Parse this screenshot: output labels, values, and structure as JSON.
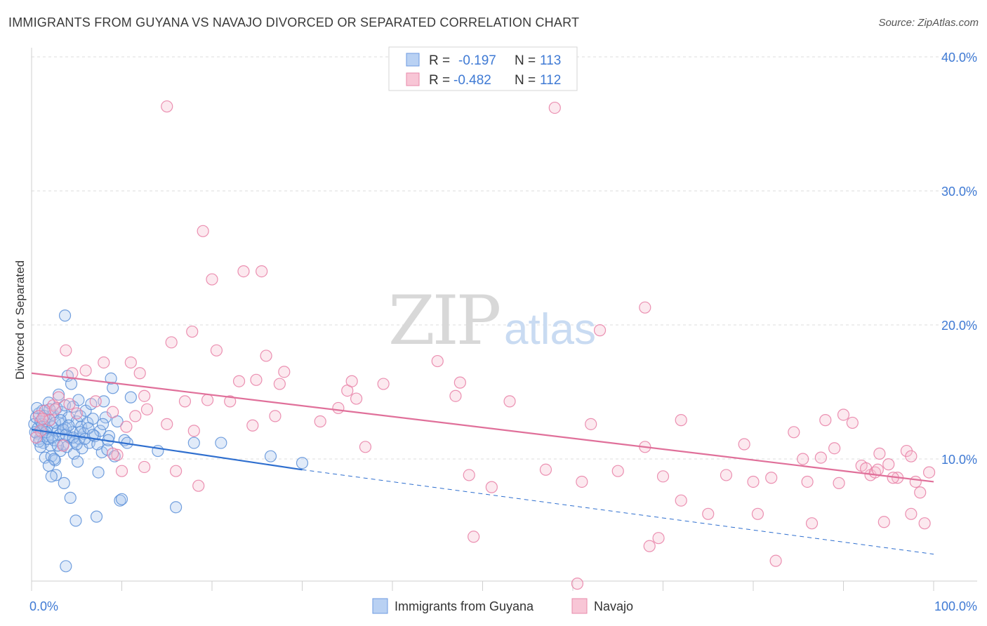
{
  "title": "IMMIGRANTS FROM GUYANA VS NAVAJO DIVORCED OR SEPARATED CORRELATION CHART",
  "source": "Source: ZipAtlas.com",
  "watermark": {
    "part1": "ZIP",
    "part2": "atlas"
  },
  "colors": {
    "blue": "#5b8fd8",
    "blue_fill": "#aac6ee",
    "blue_line": "#2f6fcf",
    "pink": "#e87ea4",
    "pink_fill": "#f5bfd1",
    "pink_line": "#e0709a",
    "axis_text": "#3f7ad4",
    "grid": "#dcdcdc"
  },
  "legend": {
    "rows": [
      {
        "r_label": "R =",
        "r_value": "-0.197",
        "n_label": "N =",
        "n_value": "113"
      },
      {
        "r_label": "R =",
        "r_value": "-0.482",
        "n_label": "N =",
        "n_value": "112"
      }
    ]
  },
  "chart_data": {
    "type": "scatter",
    "title": "IMMIGRANTS FROM GUYANA VS NAVAJO DIVORCED OR SEPARATED CORRELATION CHART",
    "xlabel": "",
    "ylabel": "Divorced or Separated",
    "xlim": [
      0,
      100
    ],
    "ylim": [
      0,
      42
    ],
    "x_tick_labels": [
      "0.0%",
      "100.0%"
    ],
    "y_ticks": [
      10,
      20,
      30,
      40
    ],
    "y_tick_labels": [
      "10.0%",
      "20.0%",
      "30.0%",
      "40.0%"
    ],
    "grid": true,
    "legend_position": "top-center",
    "series": [
      {
        "name": "Immigrants from Guyana",
        "color": "#5b8fd8",
        "trend": {
          "x0": 0,
          "y0": 12.2,
          "x1": 30,
          "y1": 9.2,
          "dash_to_x": 100,
          "dash_to_y": 2.9
        },
        "points": [
          [
            0.3,
            12.6
          ],
          [
            0.5,
            13.1
          ],
          [
            0.6,
            11.9
          ],
          [
            0.7,
            12.3
          ],
          [
            0.8,
            13.4
          ],
          [
            0.9,
            11.5
          ],
          [
            1.0,
            12.8
          ],
          [
            1.1,
            12.0
          ],
          [
            1.2,
            13.6
          ],
          [
            1.3,
            11.2
          ],
          [
            1.4,
            12.5
          ],
          [
            1.5,
            10.1
          ],
          [
            1.6,
            13.0
          ],
          [
            1.7,
            12.2
          ],
          [
            1.8,
            11.7
          ],
          [
            1.9,
            14.2
          ],
          [
            2.0,
            12.9
          ],
          [
            2.1,
            11.0
          ],
          [
            2.2,
            10.2
          ],
          [
            2.3,
            12.4
          ],
          [
            2.4,
            13.3
          ],
          [
            2.5,
            11.4
          ],
          [
            2.6,
            9.9
          ],
          [
            2.7,
            8.8
          ],
          [
            2.8,
            13.8
          ],
          [
            2.9,
            12.1
          ],
          [
            3.0,
            14.8
          ],
          [
            3.1,
            11.8
          ],
          [
            3.2,
            10.6
          ],
          [
            3.3,
            13.5
          ],
          [
            3.4,
            12.6
          ],
          [
            3.5,
            11.1
          ],
          [
            3.6,
            8.2
          ],
          [
            3.7,
            14.0
          ],
          [
            3.8,
            12.3
          ],
          [
            3.9,
            10.9
          ],
          [
            4.0,
            16.2
          ],
          [
            4.1,
            13.1
          ],
          [
            4.2,
            11.6
          ],
          [
            4.3,
            7.1
          ],
          [
            4.4,
            15.6
          ],
          [
            4.5,
            12.0
          ],
          [
            4.6,
            13.9
          ],
          [
            4.7,
            10.4
          ],
          [
            4.8,
            11.3
          ],
          [
            4.9,
            5.4
          ],
          [
            5.0,
            12.8
          ],
          [
            5.1,
            9.8
          ],
          [
            5.2,
            14.4
          ],
          [
            5.3,
            11.5
          ],
          [
            5.4,
            13.2
          ],
          [
            5.5,
            12.4
          ],
          [
            5.6,
            10.8
          ],
          [
            5.8,
            11.9
          ],
          [
            6.0,
            13.6
          ],
          [
            6.2,
            12.7
          ],
          [
            6.4,
            11.2
          ],
          [
            6.6,
            14.1
          ],
          [
            6.8,
            13.0
          ],
          [
            7.0,
            11.7
          ],
          [
            7.2,
            5.7
          ],
          [
            7.4,
            9.0
          ],
          [
            7.6,
            12.1
          ],
          [
            7.8,
            10.5
          ],
          [
            8.0,
            14.3
          ],
          [
            8.2,
            13.1
          ],
          [
            8.4,
            10.7
          ],
          [
            8.6,
            11.7
          ],
          [
            8.8,
            16.0
          ],
          [
            9.0,
            15.3
          ],
          [
            9.2,
            10.2
          ],
          [
            9.5,
            12.8
          ],
          [
            9.8,
            6.9
          ],
          [
            10.0,
            7.0
          ],
          [
            10.3,
            11.4
          ],
          [
            10.6,
            11.2
          ],
          [
            11.0,
            14.6
          ],
          [
            14.0,
            10.6
          ],
          [
            16.0,
            6.4
          ],
          [
            18.0,
            11.2
          ],
          [
            21.0,
            11.2
          ],
          [
            26.5,
            10.2
          ],
          [
            30.0,
            9.7
          ],
          [
            3.7,
            20.7
          ],
          [
            3.8,
            2.0
          ],
          [
            2.5,
            10.0
          ],
          [
            1.9,
            9.5
          ],
          [
            2.2,
            8.7
          ],
          [
            0.4,
            12.0
          ],
          [
            0.6,
            13.8
          ],
          [
            0.8,
            11.3
          ],
          [
            1.0,
            10.9
          ],
          [
            1.2,
            12.6
          ],
          [
            1.4,
            13.2
          ],
          [
            1.6,
            12.0
          ],
          [
            1.8,
            11.5
          ],
          [
            2.0,
            13.7
          ],
          [
            2.3,
            11.6
          ],
          [
            2.6,
            12.7
          ],
          [
            2.9,
            11.0
          ],
          [
            3.2,
            12.9
          ],
          [
            3.5,
            12.2
          ],
          [
            3.8,
            11.8
          ],
          [
            4.1,
            12.5
          ],
          [
            4.6,
            11.6
          ],
          [
            5.0,
            11.1
          ],
          [
            5.4,
            12.0
          ],
          [
            5.9,
            11.5
          ],
          [
            6.3,
            12.3
          ],
          [
            6.8,
            11.8
          ],
          [
            7.3,
            11.1
          ],
          [
            7.9,
            12.6
          ],
          [
            8.5,
            11.4
          ]
        ]
      },
      {
        "name": "Navajo",
        "color": "#e87ea4",
        "trend": {
          "x0": 0,
          "y0": 16.4,
          "x1": 100,
          "y1": 8.3
        },
        "points": [
          [
            15.0,
            36.3
          ],
          [
            58.0,
            36.2
          ],
          [
            19.0,
            27.0
          ],
          [
            20.0,
            23.4
          ],
          [
            23.5,
            24.0
          ],
          [
            25.5,
            24.0
          ],
          [
            68.0,
            21.3
          ],
          [
            17.8,
            19.5
          ],
          [
            63.0,
            19.6
          ],
          [
            3.8,
            18.1
          ],
          [
            15.5,
            18.7
          ],
          [
            20.5,
            18.1
          ],
          [
            26.0,
            17.7
          ],
          [
            4.5,
            16.4
          ],
          [
            11.0,
            17.2
          ],
          [
            8.0,
            17.2
          ],
          [
            6.0,
            16.6
          ],
          [
            12.0,
            16.4
          ],
          [
            23.0,
            15.8
          ],
          [
            24.9,
            15.9
          ],
          [
            27.5,
            15.6
          ],
          [
            28.0,
            16.5
          ],
          [
            35.0,
            15.1
          ],
          [
            35.5,
            15.8
          ],
          [
            39.0,
            15.6
          ],
          [
            45.0,
            17.3
          ],
          [
            47.0,
            14.7
          ],
          [
            47.5,
            15.7
          ],
          [
            2.4,
            14.0
          ],
          [
            4.2,
            14.1
          ],
          [
            7.1,
            14.3
          ],
          [
            12.5,
            14.7
          ],
          [
            12.8,
            13.7
          ],
          [
            17.0,
            14.3
          ],
          [
            19.5,
            14.4
          ],
          [
            22.0,
            14.3
          ],
          [
            32.0,
            12.8
          ],
          [
            34.0,
            13.8
          ],
          [
            36.0,
            14.5
          ],
          [
            53.0,
            14.3
          ],
          [
            5.0,
            13.4
          ],
          [
            9.0,
            13.5
          ],
          [
            10.5,
            12.4
          ],
          [
            11.5,
            13.2
          ],
          [
            15.0,
            12.6
          ],
          [
            18.0,
            12.1
          ],
          [
            24.5,
            12.5
          ],
          [
            27.0,
            13.2
          ],
          [
            62.0,
            12.6
          ],
          [
            68.0,
            10.9
          ],
          [
            72.0,
            12.9
          ],
          [
            79.0,
            11.1
          ],
          [
            84.5,
            12.0
          ],
          [
            85.5,
            10.0
          ],
          [
            88.0,
            12.9
          ],
          [
            89.0,
            10.8
          ],
          [
            90.0,
            13.3
          ],
          [
            91.0,
            12.7
          ],
          [
            92.0,
            9.5
          ],
          [
            93.0,
            8.8
          ],
          [
            94.0,
            10.4
          ],
          [
            95.0,
            9.6
          ],
          [
            96.0,
            8.6
          ],
          [
            97.0,
            10.6
          ],
          [
            97.5,
            10.2
          ],
          [
            98.5,
            7.5
          ],
          [
            99.5,
            9.0
          ],
          [
            92.5,
            9.3
          ],
          [
            93.5,
            9.0
          ],
          [
            87.5,
            10.1
          ],
          [
            86.0,
            8.3
          ],
          [
            82.0,
            8.6
          ],
          [
            80.0,
            8.3
          ],
          [
            77.0,
            8.8
          ],
          [
            70.0,
            8.7
          ],
          [
            65.0,
            9.1
          ],
          [
            61.0,
            8.3
          ],
          [
            57.0,
            9.2
          ],
          [
            51.0,
            7.9
          ],
          [
            48.5,
            8.8
          ],
          [
            37.0,
            10.9
          ],
          [
            9.5,
            10.3
          ],
          [
            12.5,
            9.4
          ],
          [
            16.0,
            9.1
          ],
          [
            18.5,
            8.0
          ],
          [
            9.0,
            10.4
          ],
          [
            10.0,
            9.1
          ],
          [
            3.5,
            11.0
          ],
          [
            1.0,
            12.1
          ],
          [
            1.5,
            13.6
          ],
          [
            2.0,
            12.9
          ],
          [
            2.6,
            13.7
          ],
          [
            3.0,
            14.6
          ],
          [
            0.8,
            13.2
          ],
          [
            0.5,
            11.6
          ],
          [
            1.2,
            13.0
          ],
          [
            72.0,
            6.9
          ],
          [
            75.0,
            5.9
          ],
          [
            80.5,
            5.9
          ],
          [
            86.5,
            5.2
          ],
          [
            94.5,
            5.3
          ],
          [
            97.5,
            5.9
          ],
          [
            99.0,
            5.2
          ],
          [
            69.5,
            4.1
          ],
          [
            68.5,
            3.5
          ],
          [
            49.0,
            4.2
          ],
          [
            82.5,
            2.4
          ],
          [
            60.5,
            0.7
          ],
          [
            93.8,
            9.2
          ],
          [
            95.5,
            8.6
          ],
          [
            98.0,
            8.3
          ],
          [
            89.5,
            8.2
          ]
        ]
      }
    ]
  },
  "bottom_legend": [
    {
      "label": "Immigrants from Guyana"
    },
    {
      "label": "Navajo"
    }
  ]
}
